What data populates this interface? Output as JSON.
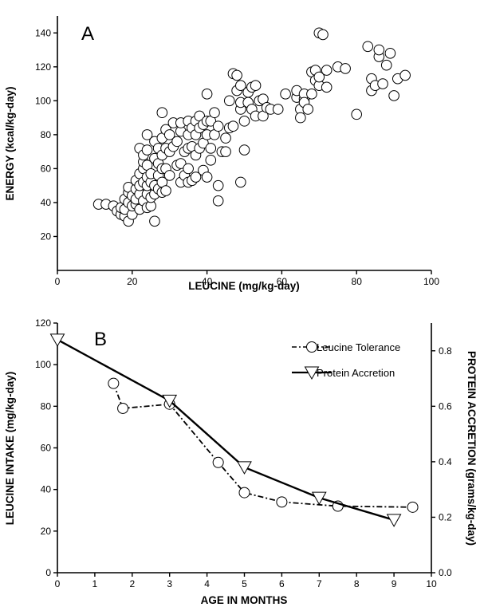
{
  "chart_data": [
    {
      "type": "scatter",
      "panel_label": "A",
      "xlabel": "LEUCINE (mg/kg-day)",
      "ylabel": "ENERGY (kcal/kg-day)",
      "xlim": [
        0,
        100
      ],
      "ylim": [
        0,
        150
      ],
      "xticks": [
        0,
        20,
        40,
        60,
        80,
        100
      ],
      "yticks": [
        20,
        40,
        60,
        80,
        100,
        120,
        140
      ],
      "grid": false,
      "points": [
        [
          11,
          39
        ],
        [
          13,
          39
        ],
        [
          15,
          38
        ],
        [
          16,
          35
        ],
        [
          17,
          33
        ],
        [
          17,
          37
        ],
        [
          18,
          32
        ],
        [
          18,
          36
        ],
        [
          18,
          42
        ],
        [
          19,
          29
        ],
        [
          19,
          40
        ],
        [
          19,
          46
        ],
        [
          19,
          49
        ],
        [
          20,
          33
        ],
        [
          20,
          38
        ],
        [
          20,
          44
        ],
        [
          21,
          39
        ],
        [
          21,
          42
        ],
        [
          21,
          48
        ],
        [
          21,
          53
        ],
        [
          22,
          36
        ],
        [
          22,
          45
        ],
        [
          22,
          50
        ],
        [
          22,
          57
        ],
        [
          22,
          72
        ],
        [
          23,
          41
        ],
        [
          23,
          52
        ],
        [
          23,
          60
        ],
        [
          23,
          64
        ],
        [
          23,
          68
        ],
        [
          24,
          37
        ],
        [
          24,
          45
        ],
        [
          24,
          50
        ],
        [
          24,
          55
        ],
        [
          24,
          62
        ],
        [
          24,
          71
        ],
        [
          24,
          80
        ],
        [
          25,
          38
        ],
        [
          25,
          43
        ],
        [
          25,
          52
        ],
        [
          25,
          57
        ],
        [
          26,
          29
        ],
        [
          26,
          45
        ],
        [
          26,
          50
        ],
        [
          26,
          66
        ],
        [
          26,
          76
        ],
        [
          27,
          48
        ],
        [
          27,
          56
        ],
        [
          27,
          63
        ],
        [
          27,
          72
        ],
        [
          28,
          46
        ],
        [
          28,
          52
        ],
        [
          28,
          60
        ],
        [
          28,
          68
        ],
        [
          28,
          78
        ],
        [
          28,
          93
        ],
        [
          29,
          47
        ],
        [
          29,
          60
        ],
        [
          29,
          72
        ],
        [
          29,
          83
        ],
        [
          30,
          56
        ],
        [
          30,
          70
        ],
        [
          30,
          80
        ],
        [
          31,
          73
        ],
        [
          31,
          87
        ],
        [
          32,
          62
        ],
        [
          32,
          76
        ],
        [
          33,
          52
        ],
        [
          33,
          63
        ],
        [
          33,
          82
        ],
        [
          33,
          87
        ],
        [
          34,
          56
        ],
        [
          34,
          70
        ],
        [
          35,
          52
        ],
        [
          35,
          60
        ],
        [
          35,
          72
        ],
        [
          35,
          80
        ],
        [
          35,
          88
        ],
        [
          36,
          53
        ],
        [
          36,
          73
        ],
        [
          36,
          84
        ],
        [
          37,
          55
        ],
        [
          37,
          68
        ],
        [
          37,
          80
        ],
        [
          37,
          88
        ],
        [
          38,
          72
        ],
        [
          38,
          84
        ],
        [
          38,
          91
        ],
        [
          39,
          59
        ],
        [
          39,
          75
        ],
        [
          39,
          86
        ],
        [
          40,
          55
        ],
        [
          40,
          80
        ],
        [
          40,
          88
        ],
        [
          40,
          104
        ],
        [
          41,
          65
        ],
        [
          41,
          72
        ],
        [
          41,
          88
        ],
        [
          42,
          80
        ],
        [
          42,
          93
        ],
        [
          43,
          41
        ],
        [
          43,
          50
        ],
        [
          43,
          85
        ],
        [
          44,
          70
        ],
        [
          45,
          70
        ],
        [
          45,
          78
        ],
        [
          46,
          84
        ],
        [
          46,
          100
        ],
        [
          47,
          85
        ],
        [
          47,
          116
        ],
        [
          48,
          106
        ],
        [
          48,
          115
        ],
        [
          49,
          52
        ],
        [
          49,
          95
        ],
        [
          49,
          99
        ],
        [
          49,
          109
        ],
        [
          50,
          71
        ],
        [
          50,
          88
        ],
        [
          51,
          105
        ],
        [
          51,
          99
        ],
        [
          52,
          108
        ],
        [
          52,
          95
        ],
        [
          53,
          109
        ],
        [
          53,
          91
        ],
        [
          54,
          100
        ],
        [
          55,
          91
        ],
        [
          55,
          101
        ],
        [
          56,
          96
        ],
        [
          57,
          95
        ],
        [
          59,
          95
        ],
        [
          61,
          104
        ],
        [
          64,
          102
        ],
        [
          64,
          106
        ],
        [
          65,
          95
        ],
        [
          65,
          90
        ],
        [
          66,
          101
        ],
        [
          66,
          104
        ],
        [
          66,
          99
        ],
        [
          67,
          95
        ],
        [
          68,
          104
        ],
        [
          68,
          117
        ],
        [
          69,
          112
        ],
        [
          69,
          118
        ],
        [
          70,
          109
        ],
        [
          70,
          114
        ],
        [
          70,
          140
        ],
        [
          71,
          139
        ],
        [
          72,
          108
        ],
        [
          72,
          118
        ],
        [
          75,
          120
        ],
        [
          77,
          119
        ],
        [
          80,
          92
        ],
        [
          83,
          132
        ],
        [
          84,
          106
        ],
        [
          84,
          113
        ],
        [
          85,
          109
        ],
        [
          86,
          126
        ],
        [
          86,
          130
        ],
        [
          87,
          110
        ],
        [
          88,
          121
        ],
        [
          89,
          128
        ],
        [
          90,
          103
        ],
        [
          91,
          113
        ],
        [
          93,
          115
        ]
      ]
    },
    {
      "type": "line",
      "panel_label": "B",
      "xlabel": "AGE IN MONTHS",
      "ylabel": "LEUCINE INTAKE (mg/kg-day)",
      "ylabel_right": "PROTEIN ACCRETION (grams/kg-day)",
      "xlim": [
        0,
        10
      ],
      "ylim": [
        0,
        120
      ],
      "ylim_right": [
        0,
        0.9
      ],
      "xticks": [
        0,
        1,
        2,
        3,
        4,
        5,
        6,
        7,
        8,
        9,
        10
      ],
      "yticks": [
        0,
        20,
        40,
        60,
        80,
        100,
        120
      ],
      "yticks_right": [
        "0.0",
        "0.2",
        "0.4",
        "0.6",
        "0.8"
      ],
      "grid": false,
      "legend_position": "top-right",
      "series": [
        {
          "name": "Leucine Tolerance",
          "axis": "left",
          "marker": "circle",
          "line_style": "dash-dot",
          "x": [
            1.5,
            1.75,
            3,
            4.3,
            5,
            6,
            7.5,
            9.5
          ],
          "y": [
            91,
            79,
            81,
            53,
            38.5,
            34,
            32,
            31.5
          ]
        },
        {
          "name": "Protein Accretion",
          "axis": "right",
          "marker": "triangle-down",
          "line_style": "solid",
          "x": [
            0,
            3,
            5,
            7,
            9
          ],
          "y": [
            0.84,
            0.62,
            0.38,
            0.27,
            0.19
          ]
        }
      ]
    }
  ]
}
